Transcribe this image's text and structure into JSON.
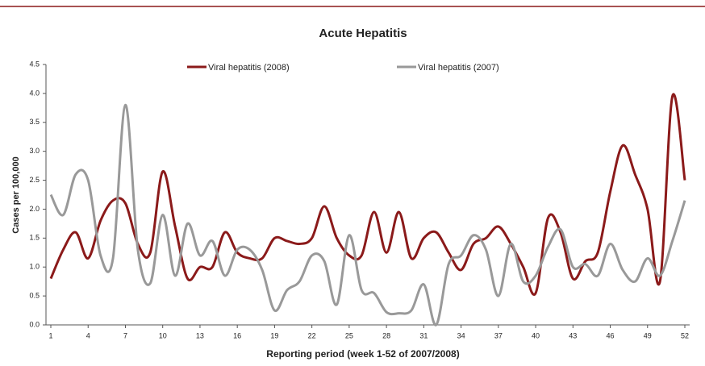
{
  "chart_data": {
    "type": "line",
    "title": "Acute Hepatitis",
    "xlabel": "Reporting period (week 1-52 of 2007/2008)",
    "ylabel": "Cases per 100,000",
    "x": [
      1,
      2,
      3,
      4,
      5,
      6,
      7,
      8,
      9,
      10,
      11,
      12,
      13,
      14,
      15,
      16,
      17,
      18,
      19,
      20,
      21,
      22,
      23,
      24,
      25,
      26,
      27,
      28,
      29,
      30,
      31,
      32,
      33,
      34,
      35,
      36,
      37,
      38,
      39,
      40,
      41,
      42,
      43,
      44,
      45,
      46,
      47,
      48,
      49,
      50,
      51,
      52
    ],
    "xlim": [
      1,
      52
    ],
    "xticks": [
      1,
      4,
      7,
      10,
      13,
      16,
      19,
      22,
      25,
      28,
      31,
      34,
      37,
      40,
      43,
      46,
      49,
      52
    ],
    "ylim": [
      0,
      4.5
    ],
    "yticks": [
      {
        "value": 0,
        "label": "0.0"
      },
      0.5,
      {
        "value": 1,
        "label": "1.0"
      },
      1.5,
      {
        "value": 2,
        "label": "2.0"
      },
      2.5,
      {
        "value": 3,
        "label": "3.0"
      },
      3.5,
      {
        "value": 4,
        "label": "4.0"
      },
      4.5
    ],
    "legend": "top",
    "series": [
      {
        "name": "Viral hepatitis (2008)",
        "color": "#8b1a1a",
        "values": [
          0.8,
          1.3,
          1.6,
          1.15,
          1.8,
          2.15,
          2.1,
          1.4,
          1.25,
          2.65,
          1.7,
          0.8,
          1.0,
          1.0,
          1.6,
          1.25,
          1.15,
          1.15,
          1.5,
          1.45,
          1.4,
          1.5,
          2.05,
          1.5,
          1.2,
          1.2,
          1.95,
          1.25,
          1.95,
          1.15,
          1.5,
          1.6,
          1.25,
          0.95,
          1.4,
          1.5,
          1.7,
          1.4,
          1.0,
          0.55,
          1.85,
          1.6,
          0.8,
          1.1,
          1.25,
          2.3,
          3.1,
          2.6,
          2.0,
          0.75,
          3.95,
          2.5
        ]
      },
      {
        "name": "Viral hepatitis (2007)",
        "color": "#999999",
        "values": [
          2.25,
          1.9,
          2.6,
          2.5,
          1.2,
          1.15,
          3.8,
          1.3,
          0.72,
          1.9,
          0.85,
          1.75,
          1.2,
          1.45,
          0.85,
          1.3,
          1.3,
          0.95,
          0.25,
          0.6,
          0.75,
          1.2,
          1.1,
          0.35,
          1.55,
          0.6,
          0.55,
          0.22,
          0.2,
          0.25,
          0.7,
          0.0,
          1.05,
          1.2,
          1.55,
          1.3,
          0.5,
          1.4,
          0.75,
          0.85,
          1.35,
          1.65,
          1.0,
          1.05,
          0.85,
          1.4,
          0.95,
          0.75,
          1.15,
          0.85,
          1.45,
          2.15
        ]
      }
    ]
  }
}
